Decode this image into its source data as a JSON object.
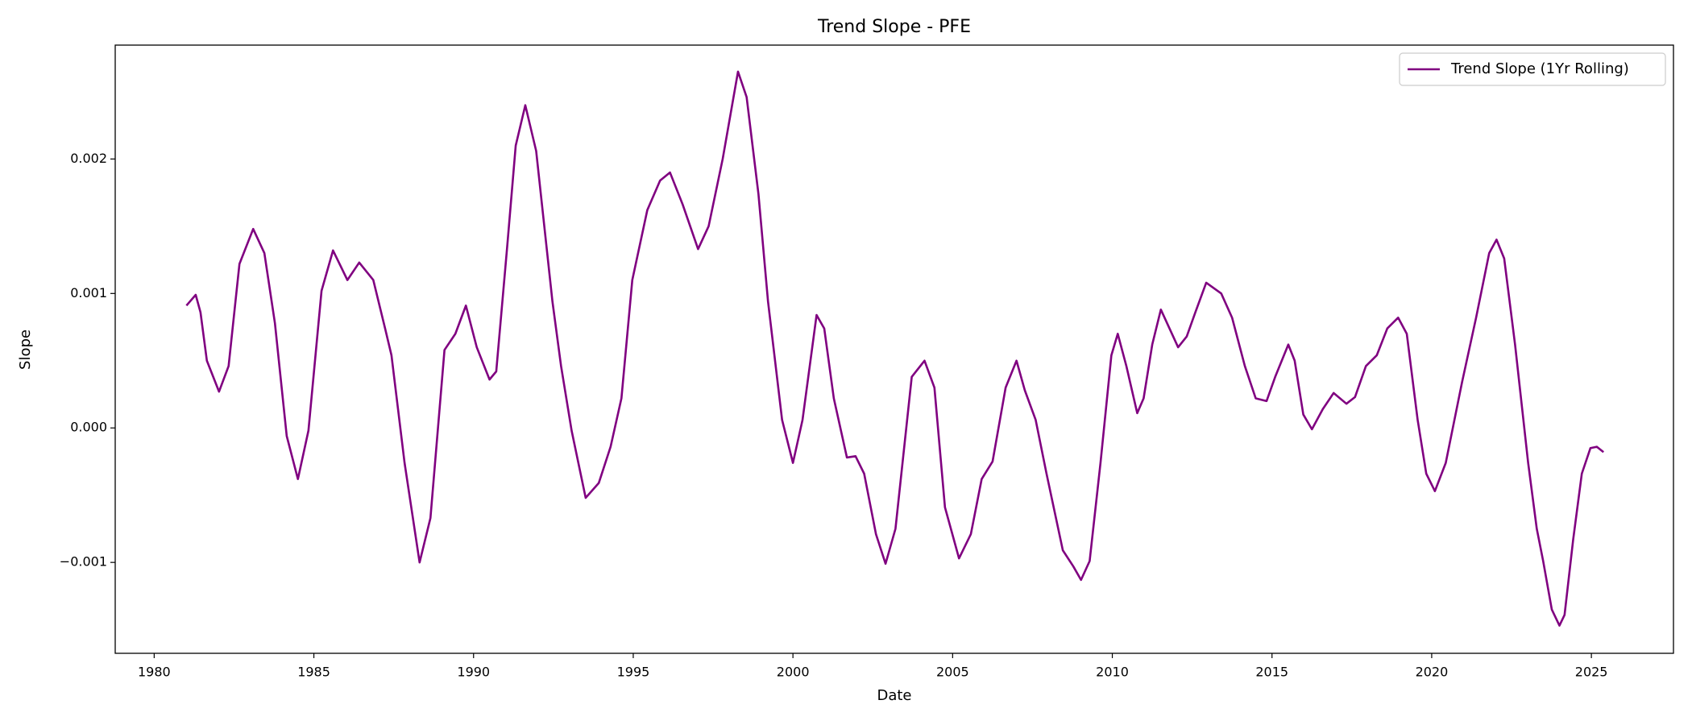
{
  "chart_data": {
    "type": "line",
    "title": "Trend Slope - PFE",
    "xlabel": "Date",
    "ylabel": "Slope",
    "x": [
      1981.01,
      1981.3,
      1981.45,
      1981.65,
      1982.03,
      1982.33,
      1982.67,
      1983.1,
      1983.45,
      1983.78,
      1984.15,
      1984.5,
      1984.83,
      1985.24,
      1985.6,
      1986.05,
      1986.42,
      1986.86,
      1987.23,
      1987.43,
      1987.84,
      1988.31,
      1988.65,
      1989.09,
      1989.43,
      1989.76,
      1990.1,
      1990.5,
      1990.71,
      1991.05,
      1991.32,
      1991.62,
      1991.96,
      1992.47,
      1992.74,
      1993.07,
      1993.51,
      1993.92,
      1994.29,
      1994.63,
      1994.97,
      1995.44,
      1995.84,
      1996.15,
      1996.55,
      1997.03,
      1997.36,
      1997.8,
      1998.28,
      1998.55,
      1998.92,
      1999.22,
      1999.66,
      2000.0,
      2000.3,
      2000.74,
      2000.98,
      2001.28,
      2001.69,
      2001.96,
      2002.23,
      2002.6,
      2002.9,
      2003.21,
      2003.72,
      2004.12,
      2004.43,
      2004.76,
      2005.2,
      2005.57,
      2005.91,
      2006.25,
      2006.66,
      2007.0,
      2007.26,
      2007.6,
      2007.94,
      2008.45,
      2008.78,
      2009.02,
      2009.29,
      2009.63,
      2009.97,
      2010.17,
      2010.44,
      2010.78,
      2010.98,
      2011.25,
      2011.52,
      2011.79,
      2012.06,
      2012.33,
      2012.6,
      2012.94,
      2013.41,
      2013.75,
      2014.15,
      2014.49,
      2014.83,
      2015.1,
      2015.51,
      2015.71,
      2015.98,
      2016.25,
      2016.59,
      2016.93,
      2017.33,
      2017.6,
      2017.94,
      2018.28,
      2018.61,
      2018.95,
      2019.22,
      2019.56,
      2019.83,
      2020.1,
      2020.44,
      2020.95,
      2021.39,
      2021.8,
      2022.03,
      2022.27,
      2022.61,
      2023.02,
      2023.29,
      2023.49,
      2023.76,
      2024.0,
      2024.16,
      2024.43,
      2024.7,
      2024.97,
      2025.17,
      2025.38
    ],
    "series": [
      {
        "name": "Trend Slope (1Yr Rolling)",
        "color": "#800080",
        "values": [
          0.00091,
          0.00099,
          0.00086,
          0.0005,
          0.00027,
          0.00046,
          0.00122,
          0.00148,
          0.0013,
          0.00078,
          -6e-05,
          -0.00038,
          -2e-05,
          0.00102,
          0.00132,
          0.0011,
          0.00123,
          0.0011,
          0.00074,
          0.00054,
          -0.00026,
          -0.001,
          -0.00067,
          0.00058,
          0.0007,
          0.00091,
          0.0006,
          0.00036,
          0.00042,
          0.00134,
          0.0021,
          0.0024,
          0.00206,
          0.00094,
          0.00046,
          -2e-05,
          -0.00052,
          -0.00041,
          -0.00014,
          0.00022,
          0.0011,
          0.00162,
          0.00184,
          0.0019,
          0.00166,
          0.00133,
          0.0015,
          0.002,
          0.00265,
          0.00246,
          0.00174,
          0.00094,
          6e-05,
          -0.00026,
          6e-05,
          0.00084,
          0.00074,
          0.00022,
          -0.00022,
          -0.00021,
          -0.00034,
          -0.00079,
          -0.00101,
          -0.00075,
          0.00038,
          0.0005,
          0.0003,
          -0.00059,
          -0.00097,
          -0.00079,
          -0.00038,
          -0.00025,
          0.0003,
          0.0005,
          0.00028,
          6e-05,
          -0.00034,
          -0.00091,
          -0.00103,
          -0.00113,
          -0.00099,
          -0.00026,
          0.00054,
          0.0007,
          0.00046,
          0.00011,
          0.00022,
          0.00062,
          0.00088,
          0.00074,
          0.0006,
          0.00068,
          0.00086,
          0.00108,
          0.001,
          0.00082,
          0.00046,
          0.00022,
          0.0002,
          0.00038,
          0.00062,
          0.0005,
          0.0001,
          -1e-05,
          0.00014,
          0.00026,
          0.00018,
          0.00023,
          0.00046,
          0.00054,
          0.00074,
          0.00082,
          0.0007,
          6e-05,
          -0.00034,
          -0.00047,
          -0.00026,
          0.00034,
          0.00082,
          0.0013,
          0.0014,
          0.00126,
          0.00062,
          -0.00026,
          -0.00075,
          -0.00099,
          -0.00135,
          -0.00147,
          -0.00139,
          -0.00083,
          -0.00034,
          -0.00015,
          -0.00014,
          -0.00018
        ]
      }
    ],
    "xlim": [
      1978.78,
      2027.57
    ],
    "xticks": [
      1980,
      1985,
      1990,
      1995,
      2000,
      2005,
      2010,
      2015,
      2020,
      2025
    ],
    "ylim": [
      -0.001676,
      0.002847
    ],
    "yticks": [
      {
        "value": -0.001,
        "label": "−0.001"
      },
      {
        "value": 0,
        "label": "0.000"
      },
      0.001,
      0.002
    ],
    "legend": "upper right"
  }
}
